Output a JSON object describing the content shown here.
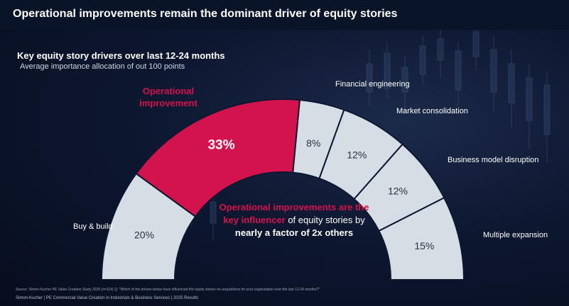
{
  "header": {
    "title": "Operational improvements remain the dominant driver of equity stories"
  },
  "chart_data": {
    "type": "pie",
    "variant": "half-donut",
    "title": "Key equity story drivers over last 12-24 months",
    "subtitle": "Average importance allocation of out 100 points",
    "categories": [
      "Buy & build",
      "Operational improvement",
      "Financial engineering",
      "Market consolidation",
      "Business model disruption",
      "Multiple expansion"
    ],
    "values": [
      20,
      33,
      8,
      12,
      12,
      15
    ],
    "value_labels": [
      "20%",
      "33%",
      "8%",
      "12%",
      "12%",
      "15%"
    ],
    "highlight": "Operational improvement",
    "highlight_label_lines": [
      "Operational",
      "improvement"
    ],
    "annotation": {
      "highlight_line1": "Operational improvements are the",
      "highlight_line2": "key influencer",
      "rest_line2": " of equity stories by",
      "bold_line3": "nearly a factor of 2x others"
    }
  },
  "colors": {
    "highlight": "#d3134e",
    "segment": "#d6dde5",
    "segment_text": "#2a3140",
    "text": "#ffffff"
  },
  "footer": {
    "source": "Source: Simon-Kucher PE Value Creation Study 2025 (n=114) Q: \"Which of the drivers below have influenced the equity stories on acquisitions for your organization over the last 12-24 months?\"",
    "brand": "Simon-Kucher  |  PE Commercial Value Creation in Industrials & Business Services  |  2025 Results"
  }
}
